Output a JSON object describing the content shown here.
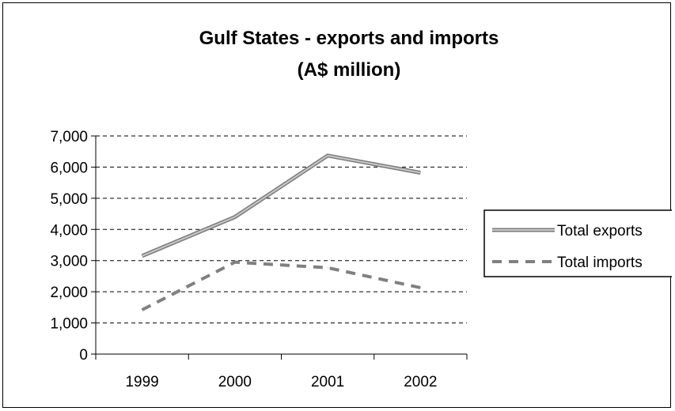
{
  "chart_data": {
    "type": "line",
    "title": "Gulf States - exports and imports",
    "subtitle": "(A$ million)",
    "xlabel": "",
    "ylabel": "",
    "categories": [
      "1999",
      "2000",
      "2001",
      "2002"
    ],
    "ylim": [
      0,
      7000
    ],
    "yticks": [
      "0",
      "1,000",
      "2,000",
      "3,000",
      "4,000",
      "5,000",
      "6,000",
      "7,000"
    ],
    "grid": "horizontal dashed",
    "legend_position": "right",
    "series": [
      {
        "name": "Total exports",
        "values": [
          3150,
          4400,
          6370,
          5820
        ],
        "color": "#a0a0a0",
        "style": "solid"
      },
      {
        "name": "Total imports",
        "values": [
          1420,
          2950,
          2770,
          2130
        ],
        "color": "#808080",
        "style": "dashed"
      }
    ]
  }
}
